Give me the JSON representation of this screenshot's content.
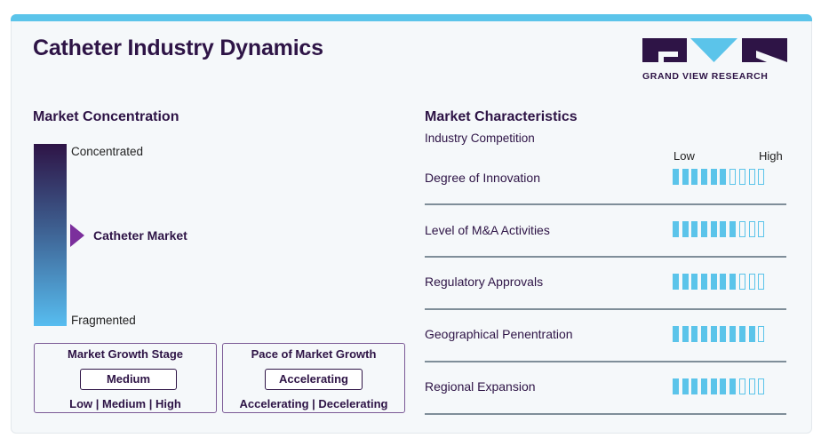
{
  "title": "Catheter Industry Dynamics",
  "logo": {
    "text": "GRAND VIEW RESEARCH"
  },
  "colors": {
    "brand_dark": "#2e1446",
    "accent_blue": "#5bc4ea",
    "pointer_purple": "#7b2f9c"
  },
  "concentration": {
    "heading": "Market Concentration",
    "top_label": "Concentrated",
    "bottom_label": "Fragmented",
    "marker_label": "Catheter Market"
  },
  "growth_stage": {
    "title": "Market Growth Stage",
    "value": "Medium",
    "options": "Low | Medium | High"
  },
  "growth_pace": {
    "title": "Pace of Market Growth",
    "value": "Accelerating",
    "options": "Accelerating | Decelerating"
  },
  "characteristics": {
    "heading": "Market Characteristics",
    "subheading": "Industry Competition",
    "scale_low": "Low",
    "scale_high": "High",
    "segments_total": 10,
    "rows": [
      {
        "label": "Degree of Innovation",
        "level": 6
      },
      {
        "label": "Level of M&A Activities",
        "level": 7
      },
      {
        "label": "Regulatory Approvals",
        "level": 7
      },
      {
        "label": "Geographical Penentration",
        "level": 9
      },
      {
        "label": "Regional Expansion",
        "level": 7
      }
    ]
  }
}
